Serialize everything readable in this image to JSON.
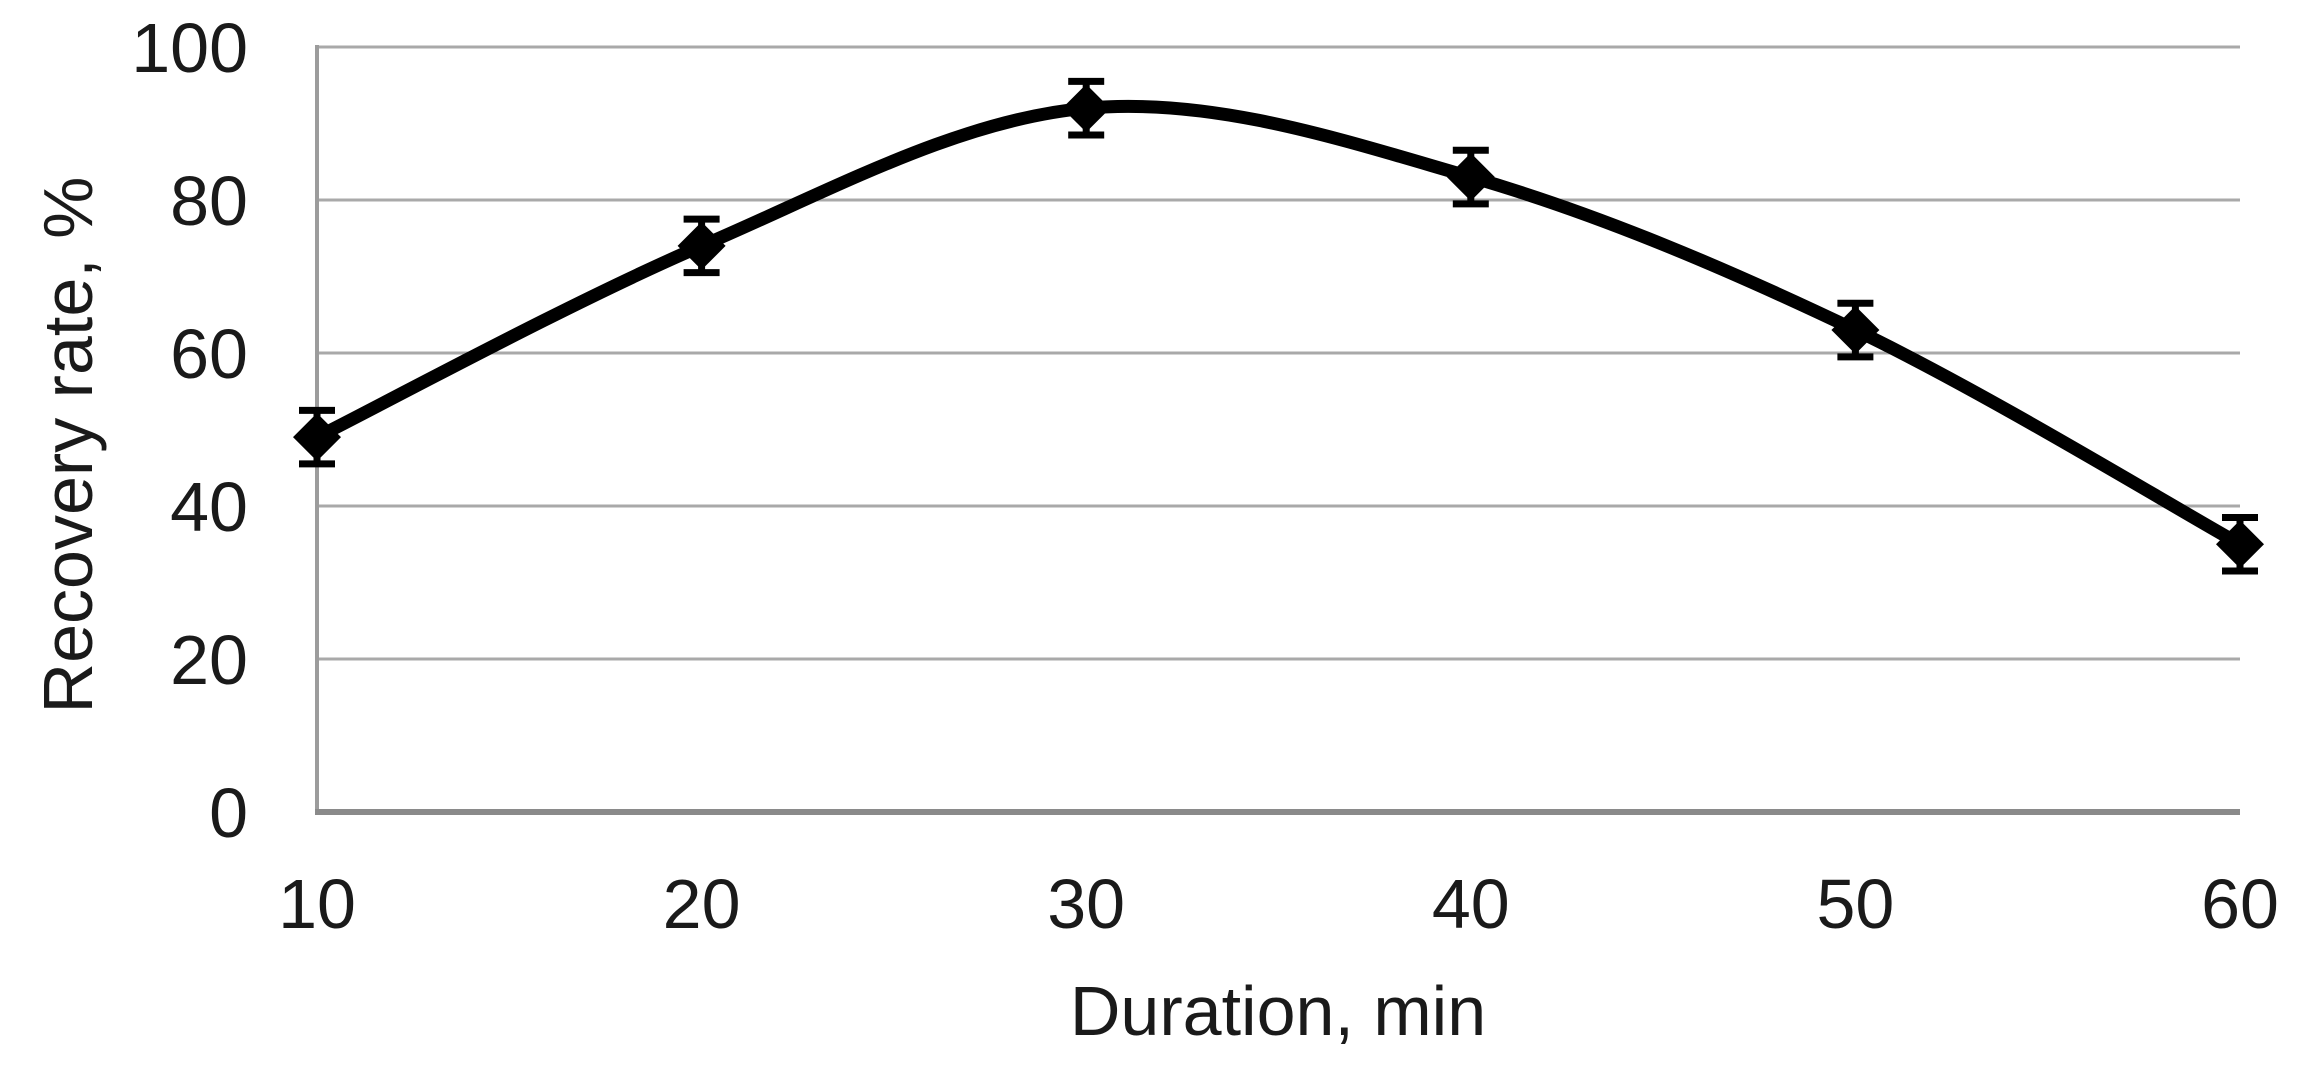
{
  "chart_data": {
    "type": "line",
    "title": "",
    "xlabel": "Duration, min",
    "ylabel": "Recovery rate, %",
    "x": [
      10,
      20,
      30,
      40,
      50,
      60
    ],
    "series": [
      {
        "name": "Recovery rate",
        "values": [
          49,
          74,
          92,
          83,
          63,
          35
        ],
        "y_error": 3.5
      }
    ],
    "x_tick_labels": [
      "10",
      "20",
      "30",
      "40",
      "50",
      "60"
    ],
    "y_tick_labels": [
      "0",
      "20",
      "40",
      "60",
      "80",
      "100"
    ],
    "xlim": [
      10,
      60
    ],
    "ylim": [
      0,
      100
    ],
    "grid": "horizontal",
    "legend_position": "none",
    "marker": "diamond",
    "smooth_line": true,
    "error_bar_caps": true,
    "colors": {
      "line": "#000000",
      "marker": "#000000",
      "error_bar": "#000000",
      "gridline": "#a9a9a9",
      "axis_left": "#9c9c9c",
      "axis_bottom": "#8a8a8a",
      "text": "#1a1a1a",
      "background": "#ffffff"
    }
  }
}
